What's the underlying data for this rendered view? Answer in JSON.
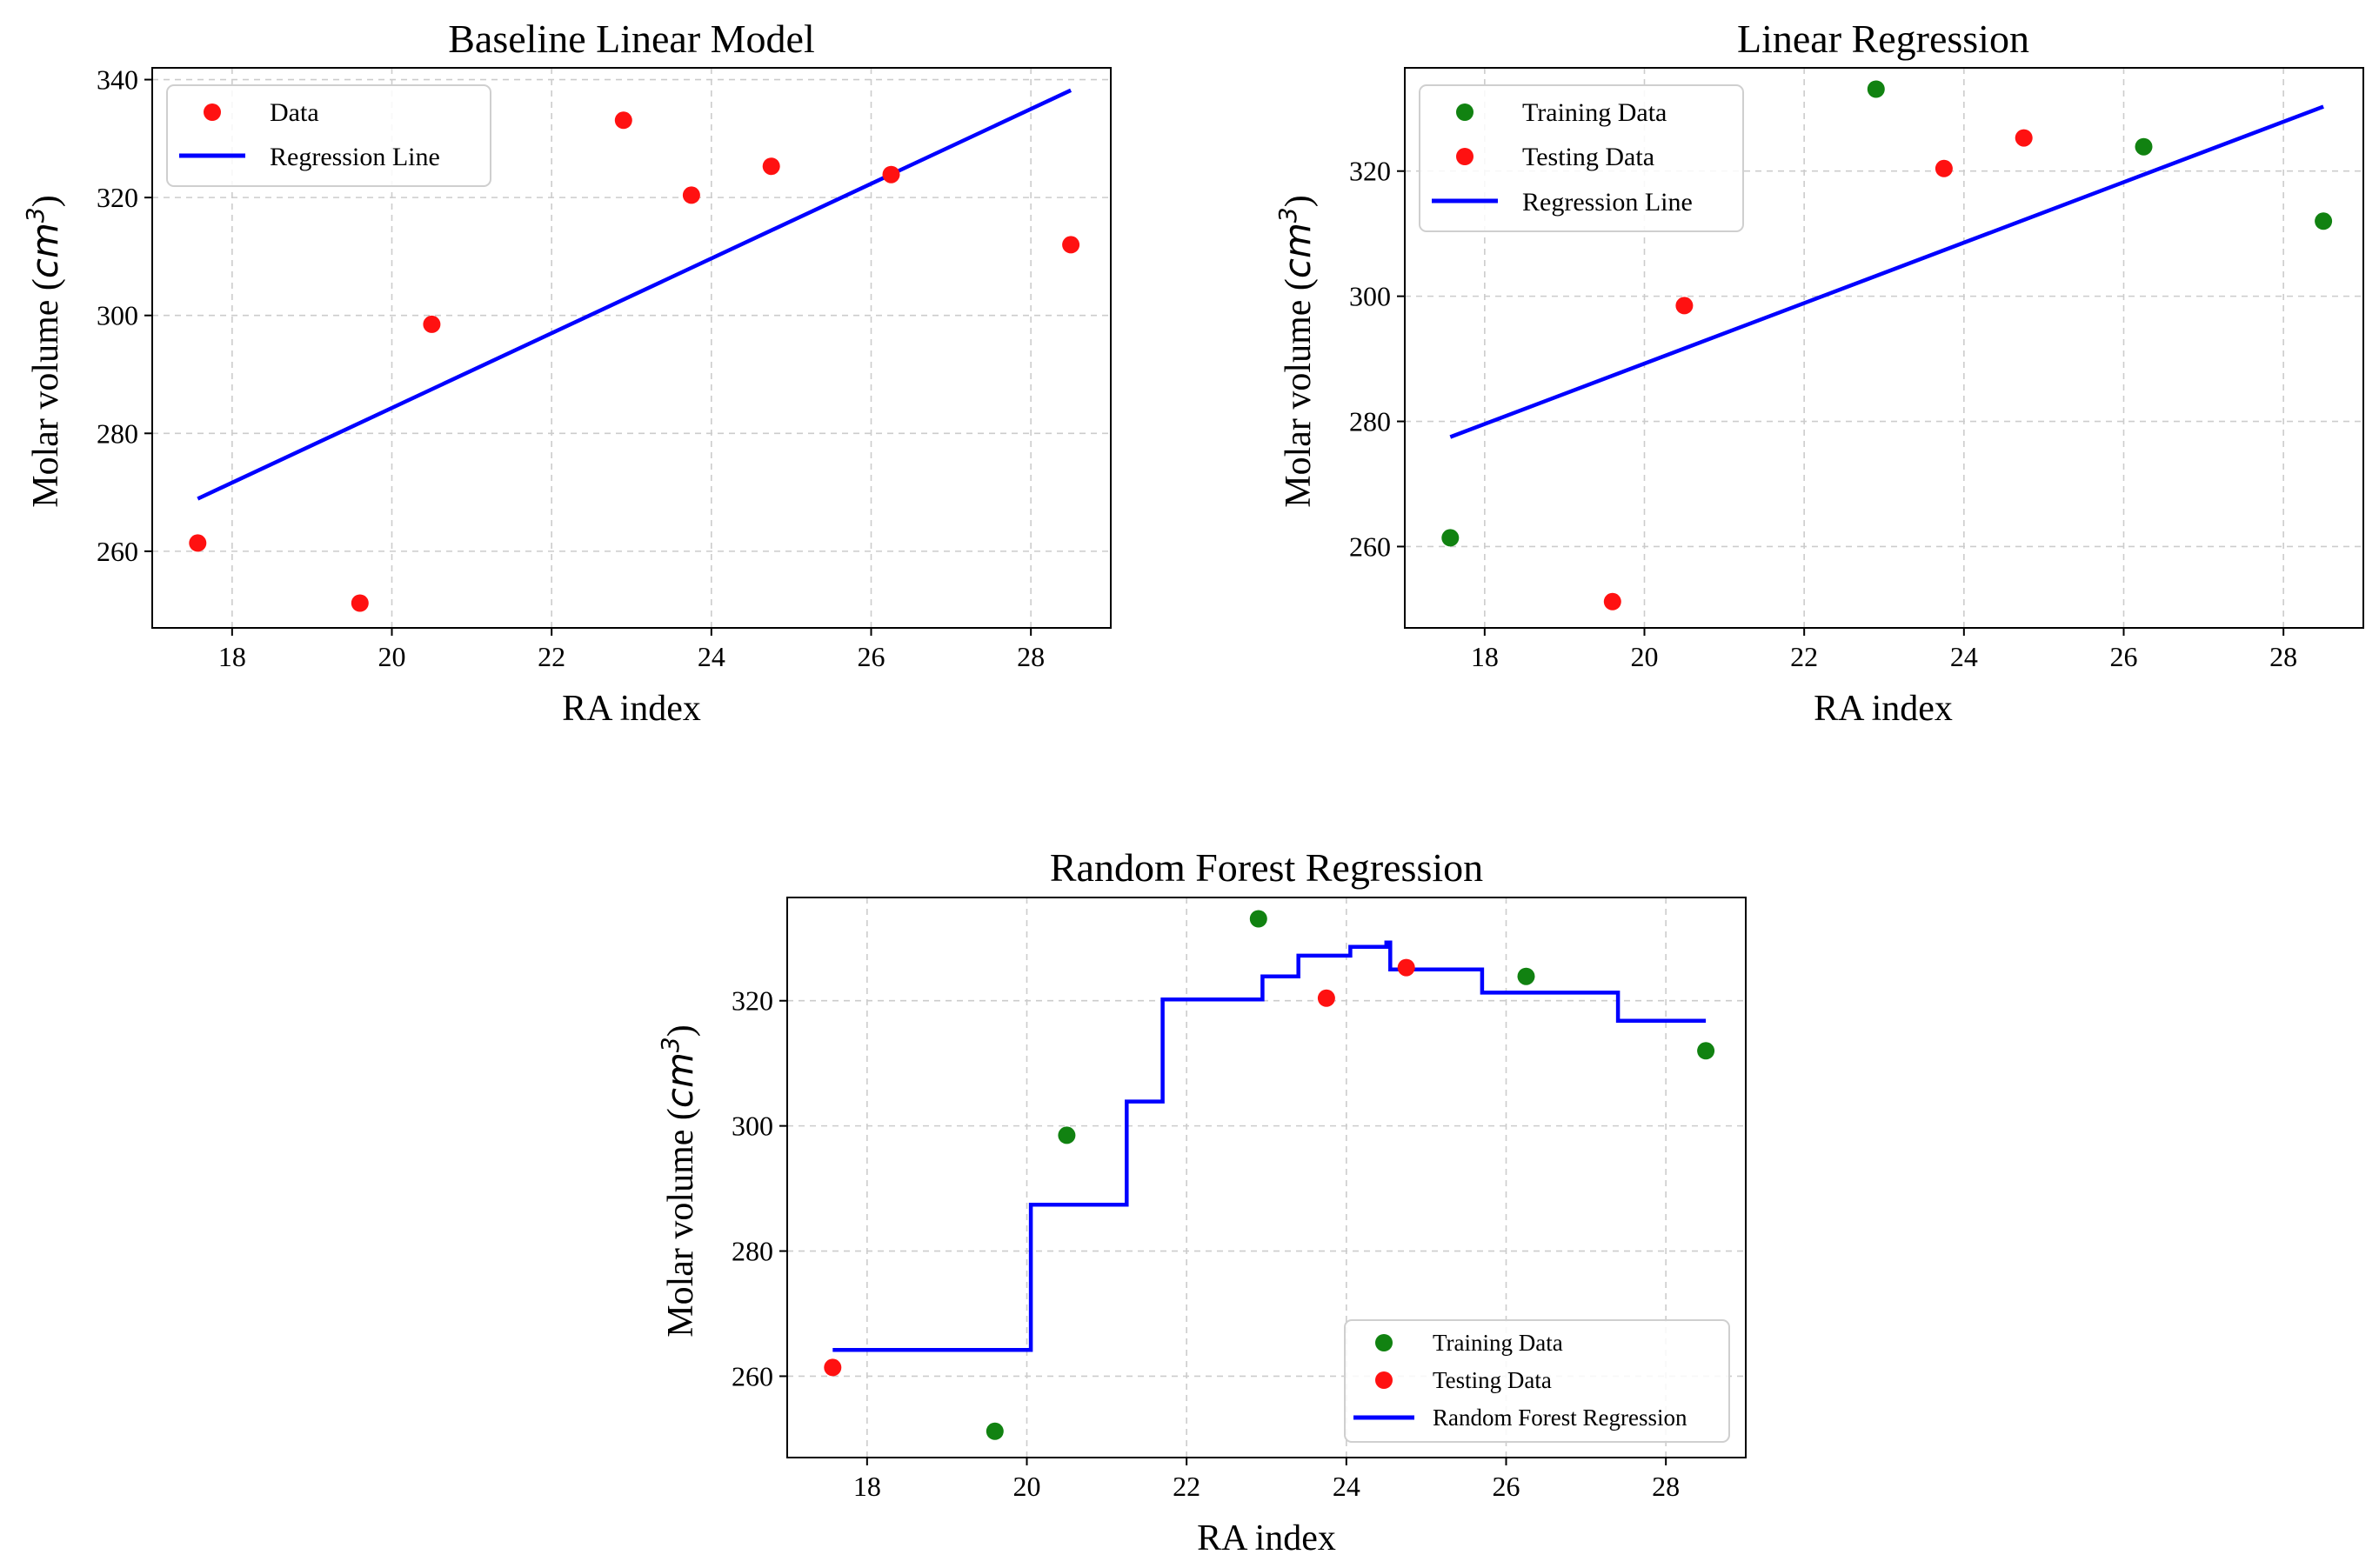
{
  "figure": {
    "colors": {
      "training": "#118211",
      "testing": "#ff1111",
      "line": "#0000ff",
      "grid": "#cccccc"
    }
  },
  "chart_data": [
    {
      "id": "baseline",
      "type": "scatter",
      "title": "Baseline Linear Model",
      "xlabel": "RA index",
      "ylabel": "Molar volume (",
      "ylabel_italic": "cm",
      "ylabel_sup": "3",
      "ylabel_end": ")",
      "xlim": [
        17.0,
        29.0
      ],
      "ylim": [
        247.0,
        342.0
      ],
      "xticks": [
        18,
        20,
        22,
        24,
        26,
        28
      ],
      "yticks": [
        260,
        280,
        300,
        320,
        340
      ],
      "grid": true,
      "legend_location": "upper-left",
      "series": [
        {
          "name": "Data",
          "kind": "points",
          "color": "#ff1111",
          "x": [
            17.57,
            19.6,
            20.5,
            22.9,
            23.75,
            24.75,
            26.25,
            28.5
          ],
          "y": [
            261.4,
            251.2,
            298.5,
            333.1,
            320.4,
            325.3,
            323.9,
            312.0
          ]
        },
        {
          "name": "Regression Line",
          "kind": "line",
          "color": "#0000ff",
          "x": [
            17.57,
            28.5
          ],
          "y": [
            268.9,
            338.2
          ]
        }
      ]
    },
    {
      "id": "linear",
      "type": "scatter",
      "title": "Linear Regression",
      "xlabel": "RA index",
      "ylabel": "Molar volume (",
      "ylabel_italic": "cm",
      "ylabel_sup": "3",
      "ylabel_end": ")",
      "xlim": [
        17.0,
        29.0
      ],
      "ylim": [
        247.0,
        336.5
      ],
      "xticks": [
        18,
        20,
        22,
        24,
        26,
        28
      ],
      "yticks": [
        260,
        280,
        300,
        320
      ],
      "grid": true,
      "legend_location": "upper-left",
      "series": [
        {
          "name": "Training Data",
          "kind": "points",
          "color": "#118211",
          "x": [
            17.57,
            22.9,
            26.25,
            28.5
          ],
          "y": [
            261.4,
            333.1,
            323.9,
            312.0
          ]
        },
        {
          "name": "Testing Data",
          "kind": "points",
          "color": "#ff1111",
          "x": [
            19.6,
            20.5,
            23.75,
            24.75
          ],
          "y": [
            251.2,
            298.5,
            320.4,
            325.3
          ]
        },
        {
          "name": "Regression Line",
          "kind": "line",
          "color": "#0000ff",
          "x": [
            17.57,
            28.5
          ],
          "y": [
            277.5,
            330.3
          ]
        }
      ]
    },
    {
      "id": "forest",
      "type": "scatter",
      "title": "Random Forest Regression",
      "xlabel": "RA index",
      "ylabel": "Molar volume (",
      "ylabel_italic": "cm",
      "ylabel_sup": "3",
      "ylabel_end": ")",
      "xlim": [
        17.0,
        29.0
      ],
      "ylim": [
        247.0,
        336.5
      ],
      "xticks": [
        18,
        20,
        22,
        24,
        26,
        28
      ],
      "yticks": [
        260,
        280,
        300,
        320
      ],
      "grid": true,
      "legend_location": "lower-right",
      "series": [
        {
          "name": "Training Data",
          "kind": "points",
          "color": "#118211",
          "x": [
            19.6,
            20.5,
            22.9,
            26.25,
            28.5
          ],
          "y": [
            251.2,
            298.5,
            333.1,
            323.9,
            312.0
          ]
        },
        {
          "name": "Testing Data",
          "kind": "points",
          "color": "#ff1111",
          "x": [
            17.57,
            23.75,
            24.75
          ],
          "y": [
            261.4,
            320.4,
            325.3
          ]
        },
        {
          "name": "Random Forest Regression",
          "kind": "step",
          "color": "#0000ff",
          "x": [
            17.57,
            20.05,
            20.05,
            21.25,
            21.25,
            21.7,
            21.7,
            22.95,
            22.95,
            23.4,
            23.4,
            24.05,
            24.05,
            24.5,
            24.5,
            24.55,
            24.55,
            25.7,
            25.7,
            27.4,
            27.4,
            28.5
          ],
          "y": [
            264.2,
            264.2,
            287.4,
            287.4,
            303.9,
            303.9,
            320.2,
            320.2,
            323.9,
            323.9,
            327.2,
            327.2,
            328.6,
            328.6,
            329.3,
            329.3,
            325.0,
            325.0,
            321.3,
            321.3,
            316.8,
            316.8
          ]
        }
      ]
    }
  ]
}
